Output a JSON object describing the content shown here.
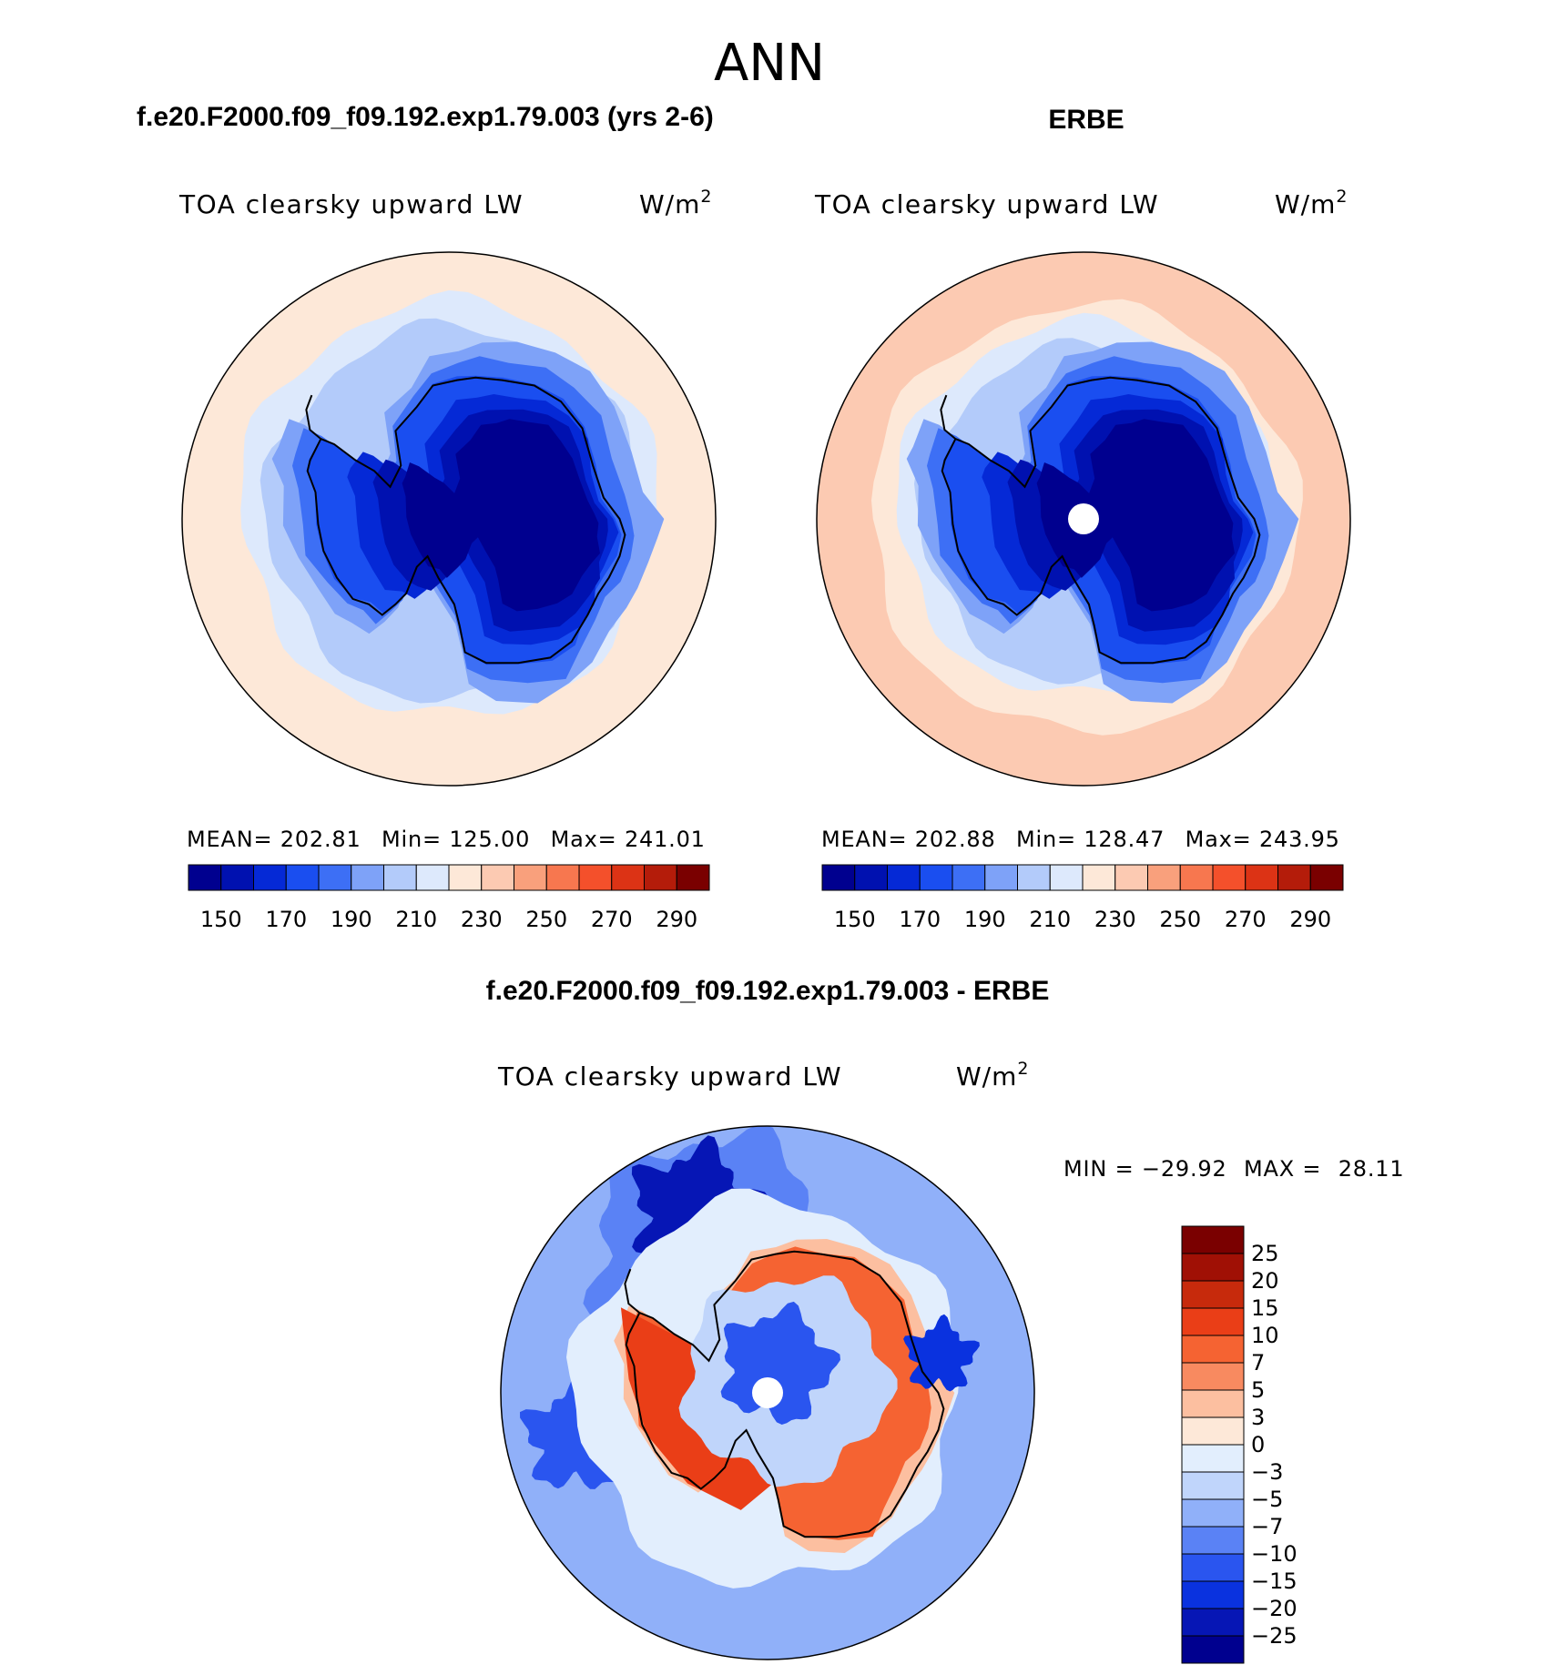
{
  "page_title": "ANN",
  "colors": {
    "abs_scale": [
      "#00008f",
      "#0011b0",
      "#0529d6",
      "#1a4ef0",
      "#3d6ff5",
      "#7ea2f8",
      "#b3cbfa",
      "#dde9fc",
      "#fde8d8",
      "#fccab2",
      "#f9a07c",
      "#f7774f",
      "#f4502b",
      "#dc3315",
      "#b41c0a",
      "#7a0000"
    ],
    "diff_scale": [
      "#00008f",
      "#0616b5",
      "#0a32df",
      "#2a55ef",
      "#5a82f5",
      "#90b0f9",
      "#c0d5fb",
      "#e2eefd",
      "#fde8d8",
      "#fcbfa0",
      "#f88a60",
      "#f56332",
      "#ea3e17",
      "#c72a0c",
      "#a01005",
      "#7a0000"
    ]
  },
  "chart_data": [
    {
      "type": "heatmap",
      "subtitle": "f.e20.F2000.f09_f09.192.exp1.79.003 (yrs 2-6)",
      "variable": "TOA clearsky upward LW",
      "units": "W/m",
      "units_superscript": "2",
      "stats": {
        "mean_label": "MEAN=",
        "mean": "202.81",
        "min_label": "Min=",
        "min": "125.00",
        "max_label": "Max=",
        "max": "241.01"
      },
      "colorbar_ticks": [
        "150",
        "170",
        "190",
        "210",
        "230",
        "250",
        "270",
        "290"
      ],
      "levels": [
        140,
        150,
        160,
        170,
        180,
        190,
        200,
        210,
        220,
        230,
        240,
        250,
        260,
        270,
        280,
        290
      ],
      "pole_hole": false
    },
    {
      "type": "heatmap",
      "subtitle": "ERBE",
      "variable": "TOA clearsky upward LW",
      "units": "W/m",
      "units_superscript": "2",
      "stats": {
        "mean_label": "MEAN=",
        "mean": "202.88",
        "min_label": "Min=",
        "min": "128.47",
        "max_label": "Max=",
        "max": "243.95"
      },
      "colorbar_ticks": [
        "150",
        "170",
        "190",
        "210",
        "230",
        "250",
        "270",
        "290"
      ],
      "levels": [
        140,
        150,
        160,
        170,
        180,
        190,
        200,
        210,
        220,
        230,
        240,
        250,
        260,
        270,
        280,
        290
      ],
      "pole_hole": true
    },
    {
      "type": "heatmap",
      "subtitle": "f.e20.F2000.f09_f09.192.exp1.79.003 - ERBE",
      "variable": "TOA clearsky upward LW",
      "units": "W/m",
      "units_superscript": "2",
      "stats": {
        "min_label": "MIN =",
        "min": "−29.92",
        "max_label": "MAX =",
        "max": "28.11"
      },
      "colorbar_ticks": [
        "25",
        "20",
        "15",
        "10",
        "7",
        "5",
        "3",
        "0",
        "−3",
        "−5",
        "−7",
        "−10",
        "−15",
        "−20",
        "−25"
      ],
      "levels": [
        -25,
        -20,
        -15,
        -10,
        -7,
        -5,
        -3,
        0,
        3,
        5,
        7,
        10,
        15,
        20,
        25
      ],
      "pole_hole": true
    }
  ]
}
